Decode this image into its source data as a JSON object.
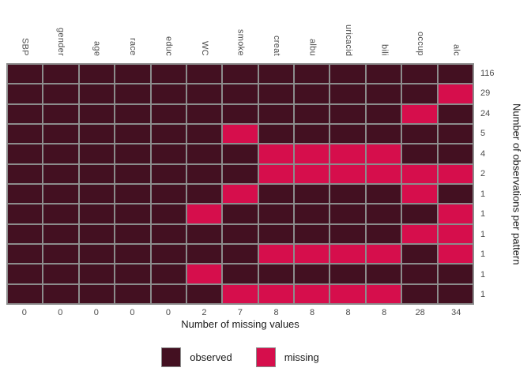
{
  "chart_data": {
    "type": "heatmap",
    "description": "Missing data pattern plot",
    "x_axis_title": "Number of missing values",
    "y_axis_title": "Number of observations per pattern",
    "columns": [
      "SBP",
      "gender",
      "age",
      "race",
      "educ",
      "WC",
      "smoke",
      "creat",
      "albu",
      "uricacid",
      "bili",
      "occup",
      "alc"
    ],
    "column_missing_counts": [
      0,
      0,
      0,
      0,
      0,
      2,
      7,
      8,
      8,
      8,
      8,
      28,
      34
    ],
    "pattern_counts": [
      116,
      29,
      24,
      5,
      4,
      2,
      1,
      1,
      1,
      1,
      1,
      1
    ],
    "patterns": [
      [
        0,
        0,
        0,
        0,
        0,
        0,
        0,
        0,
        0,
        0,
        0,
        0,
        0
      ],
      [
        0,
        0,
        0,
        0,
        0,
        0,
        0,
        0,
        0,
        0,
        0,
        0,
        1
      ],
      [
        0,
        0,
        0,
        0,
        0,
        0,
        0,
        0,
        0,
        0,
        0,
        1,
        0
      ],
      [
        0,
        0,
        0,
        0,
        0,
        0,
        1,
        0,
        0,
        0,
        0,
        0,
        0
      ],
      [
        0,
        0,
        0,
        0,
        0,
        0,
        0,
        1,
        1,
        1,
        1,
        0,
        0
      ],
      [
        0,
        0,
        0,
        0,
        0,
        0,
        0,
        1,
        1,
        1,
        1,
        1,
        1
      ],
      [
        0,
        0,
        0,
        0,
        0,
        0,
        1,
        0,
        0,
        0,
        0,
        1,
        0
      ],
      [
        0,
        0,
        0,
        0,
        0,
        1,
        0,
        0,
        0,
        0,
        0,
        0,
        1
      ],
      [
        0,
        0,
        0,
        0,
        0,
        0,
        0,
        0,
        0,
        0,
        0,
        1,
        1
      ],
      [
        0,
        0,
        0,
        0,
        0,
        0,
        0,
        1,
        1,
        1,
        1,
        0,
        1
      ],
      [
        0,
        0,
        0,
        0,
        0,
        1,
        0,
        0,
        0,
        0,
        0,
        0,
        0
      ],
      [
        0,
        0,
        0,
        0,
        0,
        0,
        1,
        1,
        1,
        1,
        1,
        0,
        0
      ]
    ],
    "pattern_value_meaning": {
      "0": "observed",
      "1": "missing"
    },
    "legend": [
      {
        "label": "observed",
        "key": "observed"
      },
      {
        "label": "missing",
        "key": "missing"
      }
    ],
    "colors": {
      "observed": "#431021",
      "missing": "#D60E4C",
      "grid_line": "#8C8C8C",
      "axis_text": "#4D4D4D",
      "title_text": "#1A1A1A",
      "background": "#FFFFFF"
    },
    "layout": {
      "grid_on": true,
      "legend_position": "bottom",
      "column_labels_rotated": true
    }
  }
}
